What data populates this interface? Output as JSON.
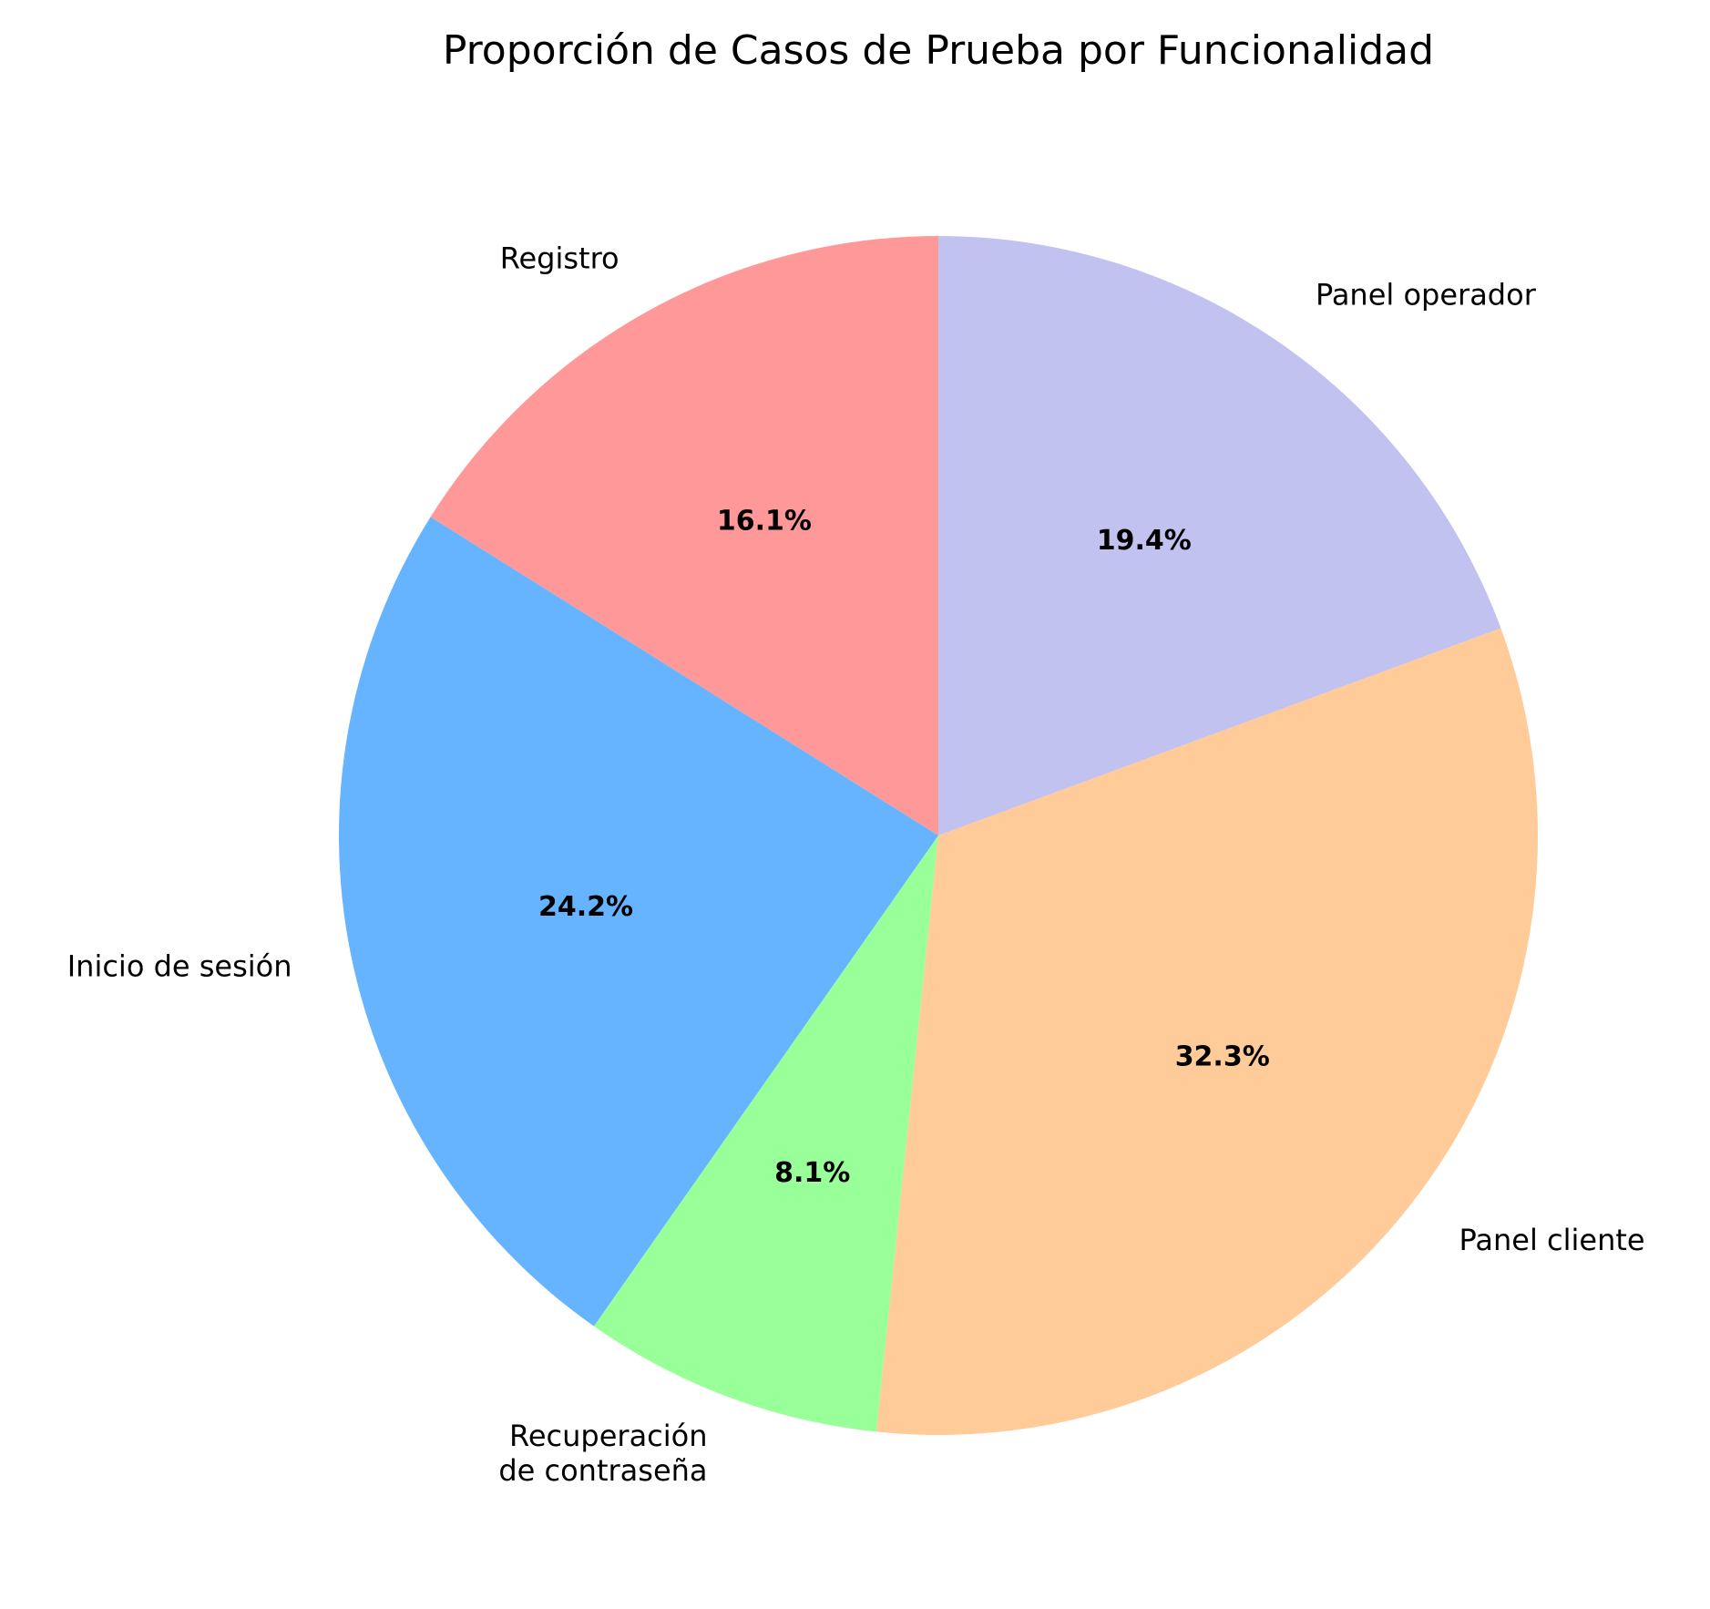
{
  "chart_data": {
    "type": "pie",
    "title": "Proporción de Casos de Prueba por Funcionalidad",
    "start_angle_deg": 90,
    "direction": "counterclockwise",
    "slices": [
      {
        "label": [
          "Registro"
        ],
        "percent": 16.1,
        "percent_label": "16.1%",
        "color": "#ff9999"
      },
      {
        "label": [
          "Inicio de sesión"
        ],
        "percent": 24.2,
        "percent_label": "24.2%",
        "color": "#66b3ff"
      },
      {
        "label": [
          "Recuperación",
          "de contraseña"
        ],
        "percent": 8.1,
        "percent_label": "8.1%",
        "color": "#99ff99"
      },
      {
        "label": [
          "Panel cliente"
        ],
        "percent": 32.3,
        "percent_label": "32.3%",
        "color": "#ffcc99"
      },
      {
        "label": [
          "Panel operador"
        ],
        "percent": 19.4,
        "percent_label": "19.4%",
        "color": "#c2c2f0"
      }
    ]
  }
}
